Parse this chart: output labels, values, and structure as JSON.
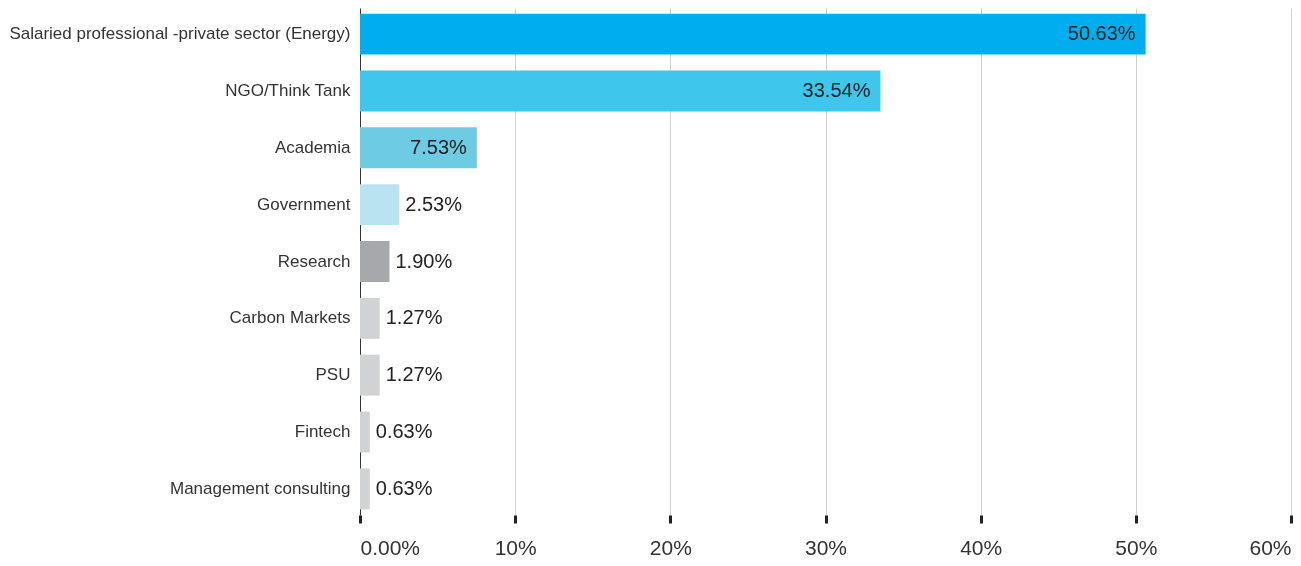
{
  "chart_data": {
    "type": "bar",
    "orientation": "horizontal",
    "categories": [
      "Salaried professional -private sector (Energy)",
      "NGO/Think Tank",
      "Academia",
      "Government",
      "Research",
      "Carbon Markets",
      "PSU",
      "Fintech",
      "Management consulting"
    ],
    "values": [
      50.63,
      33.54,
      7.53,
      2.53,
      1.9,
      1.27,
      1.27,
      0.63,
      0.63
    ],
    "colors": [
      "#00adef",
      "#3ec6ec",
      "#6dcbe3",
      "#b9e3f1",
      "#a7a8ab",
      "#d1d2d4",
      "#d1d2d4",
      "#d1d2d4",
      "#d1d2d4"
    ],
    "value_labels": [
      "50.63%",
      "33.54%",
      "7.53%",
      "2.53%",
      "1.90%",
      "1.27%",
      "1.27%",
      "0.63%",
      "0.63%"
    ],
    "xlim": [
      0,
      60
    ],
    "xticks": [
      {
        "value": 0,
        "label": "0.00%"
      },
      {
        "value": 10,
        "label": "10%"
      },
      {
        "value": 20,
        "label": "20%"
      },
      {
        "value": 30,
        "label": "30%"
      },
      {
        "value": 40,
        "label": "40%"
      },
      {
        "value": 50,
        "label": "50%"
      },
      {
        "value": 60,
        "label": "60%"
      }
    ],
    "grid": "x"
  }
}
